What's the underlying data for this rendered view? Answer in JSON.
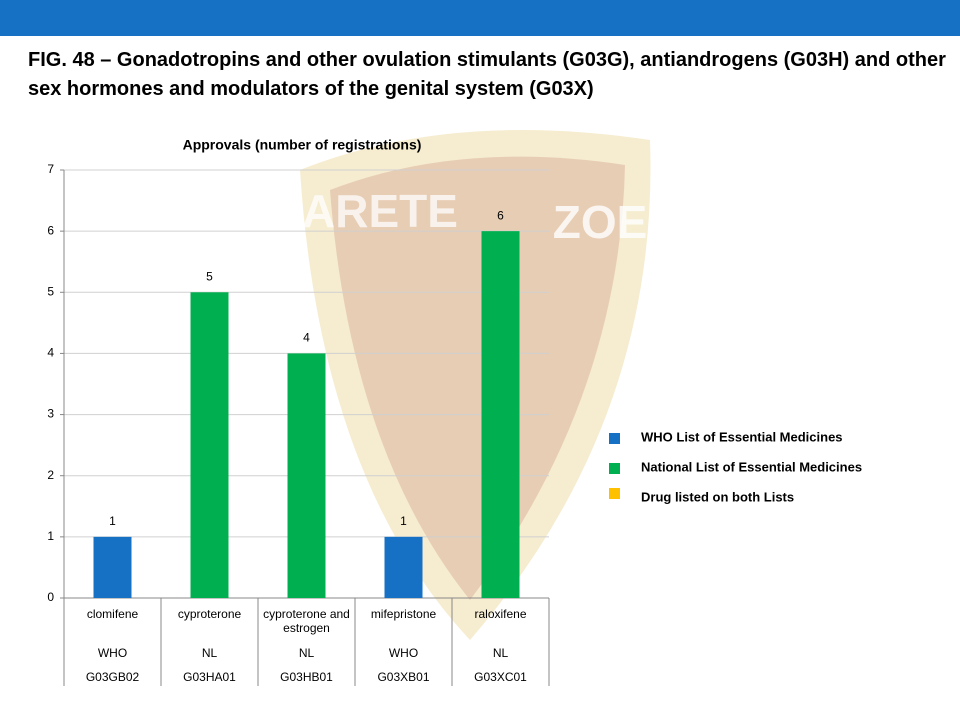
{
  "header": {
    "title": "FIG. 48 – Gonadotropins and other ovulation stimulants (G03G), antiandrogens (G03H) and other sex hormones and modulators of the genital system  (G03X)"
  },
  "watermark": [
    "ARETE",
    "ZOE"
  ],
  "chart_data": {
    "type": "bar",
    "title": "Approvals (number of registrations)",
    "categories": [
      "clomifene",
      "cyproterone",
      "cyproterone and estrogen",
      "mifepristone",
      "raloxifene"
    ],
    "list_labels": [
      "WHO",
      "NL",
      "NL",
      "WHO",
      "NL"
    ],
    "atc_codes": [
      "G03GB02",
      "G03HA01",
      "G03HB01",
      "G03XB01",
      "G03XC01"
    ],
    "series": [
      {
        "name": "WHO List of Essential Medicines",
        "color": "#1670c4",
        "values": [
          1,
          null,
          null,
          1,
          null
        ]
      },
      {
        "name": "National List of Essential Medicines",
        "color": "#00b050",
        "values": [
          null,
          5,
          4,
          null,
          6
        ]
      },
      {
        "name": "Drug listed on both Lists",
        "color": "#ffc000",
        "values": [
          null,
          null,
          null,
          null,
          null
        ]
      }
    ],
    "ylim": [
      0,
      7
    ],
    "yticks": [
      0,
      1,
      2,
      3,
      4,
      5,
      6,
      7
    ],
    "grid": true,
    "legend": "right"
  }
}
